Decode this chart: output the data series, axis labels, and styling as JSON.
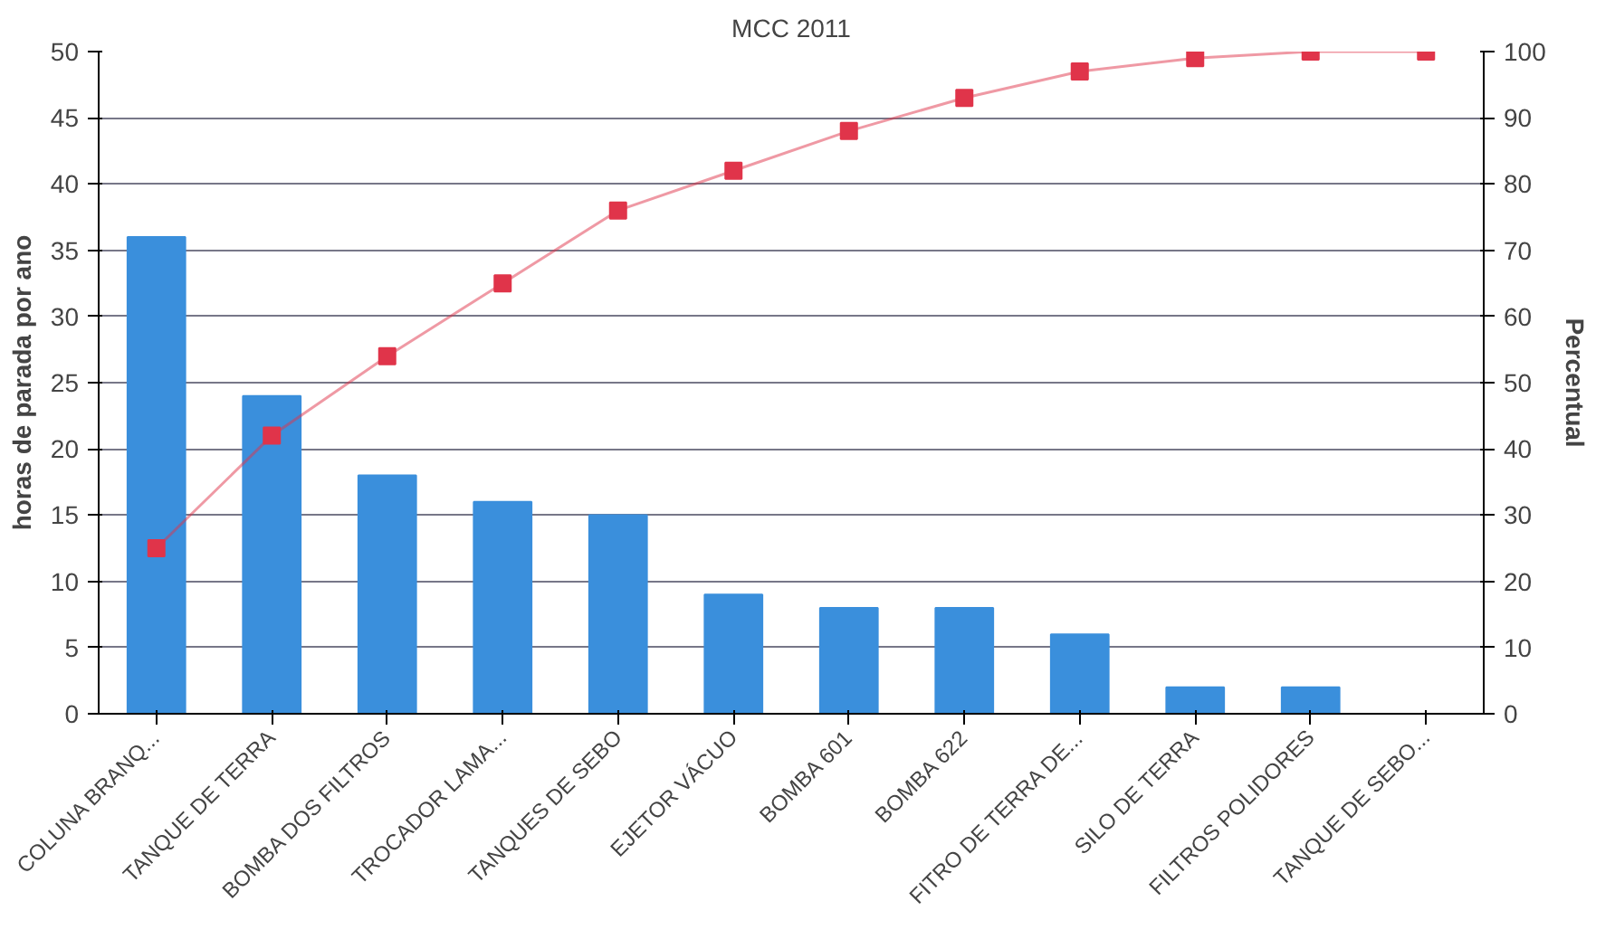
{
  "chart_data": {
    "type": "bar",
    "title": "MCC 2011",
    "ylabel": "horas de parada por ano",
    "y2label": "Percentual",
    "categories": [
      "COLUNA BRANQ...",
      "TANQUE DE TERRA",
      "BOMBA DOS FILTROS",
      "TROCADOR LAMA...",
      "TANQUES DE SEBO",
      "EJETOR VÁCUO",
      "BOMBA 601",
      "BOMBA 622",
      "FITRO DE TERRA DE...",
      "SILO DE TERRA",
      "FILTROS POLIDORES",
      "TANQUE DE SEBO..."
    ],
    "series": [
      {
        "color": "#3a8fdc",
        "values": [
          36,
          24,
          18,
          16,
          15,
          9,
          8,
          8,
          6,
          2,
          2,
          0
        ]
      },
      {
        "type": "line",
        "axis": "y2",
        "color": "#e0344a",
        "marker": "square",
        "values": [
          25,
          42,
          54,
          65,
          76,
          82,
          88,
          93,
          97,
          99,
          100,
          100
        ]
      }
    ],
    "ylim": [
      0,
      50
    ],
    "yticks": [
      0,
      5,
      10,
      15,
      20,
      25,
      30,
      35,
      40,
      45,
      50
    ],
    "y2lim": [
      0,
      100
    ],
    "y2ticks": [
      0,
      10,
      20,
      30,
      40,
      50,
      60,
      70,
      80,
      90,
      100
    ],
    "grid": "y",
    "line_style": "solid"
  }
}
